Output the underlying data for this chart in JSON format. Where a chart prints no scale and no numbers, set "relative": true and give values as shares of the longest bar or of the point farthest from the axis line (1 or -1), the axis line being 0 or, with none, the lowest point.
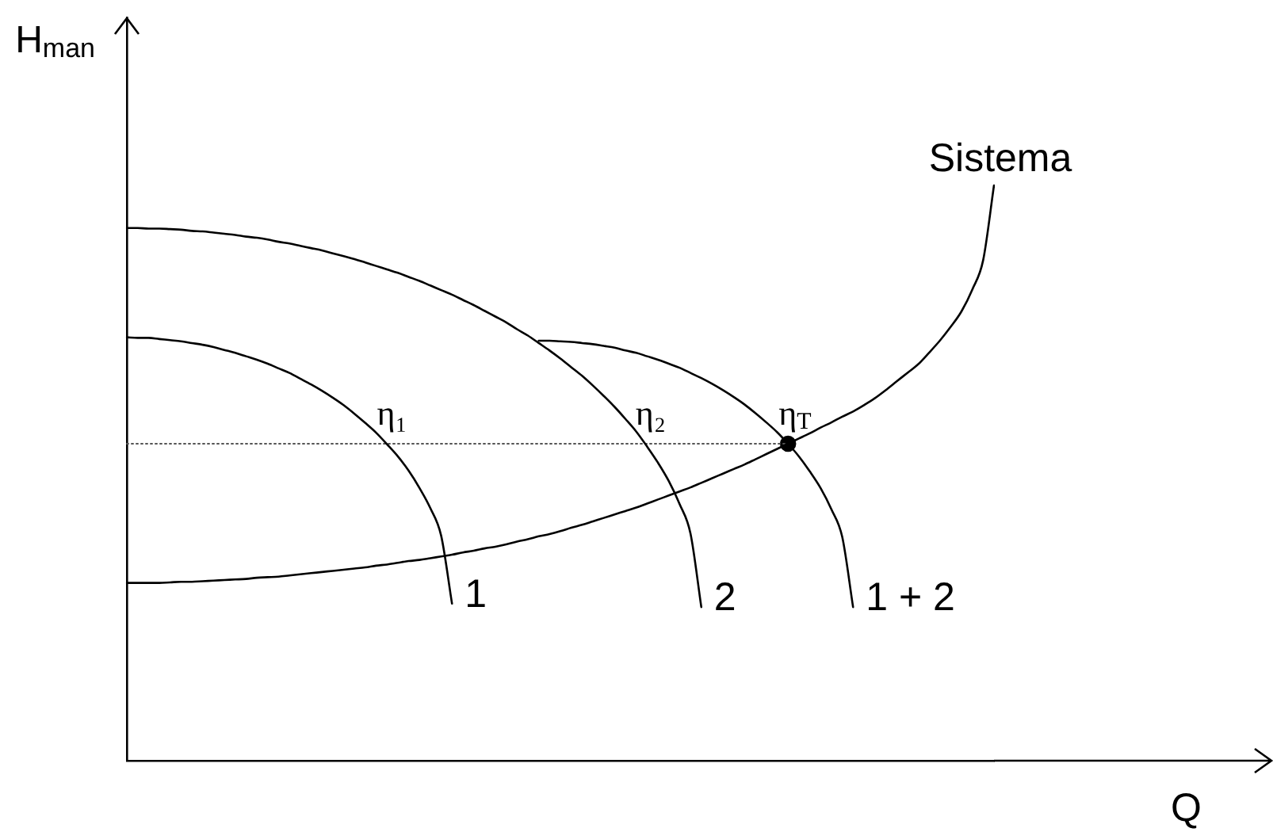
{
  "chart_data": {
    "type": "line",
    "relative": true,
    "marker": "none",
    "line_style": "solid",
    "xlabel": "Q",
    "ylabel": "H$_{man}$",
    "categories": [
      null,
      null,
      null,
      null,
      null,
      null,
      null,
      null,
      null,
      null,
      null,
      null,
      null,
      null,
      null,
      null,
      null,
      null,
      null,
      null,
      null,
      null,
      null,
      null,
      null,
      null,
      null,
      null,
      null,
      null,
      null,
      null,
      null,
      null,
      null,
      null,
      null,
      null,
      null,
      null,
      null,
      null,
      null,
      null,
      null,
      null,
      null,
      null,
      null,
      null,
      null,
      null,
      null,
      null,
      null,
      null,
      null,
      null,
      null,
      null,
      null,
      null,
      null,
      null,
      null,
      null,
      null,
      null,
      null,
      null,
      null,
      null,
      null,
      null,
      null,
      null,
      null,
      null,
      null,
      null,
      null
    ],
    "series": [
      {
        "name": "1",
        "color": "#000000",
        "values": [
          0.736,
          0.735,
          0.735,
          0.733,
          0.731,
          0.729,
          0.726,
          0.723,
          0.719,
          0.714,
          0.709,
          0.703,
          0.697,
          0.69,
          0.682,
          0.674,
          0.664,
          0.654,
          0.643,
          0.631,
          0.618,
          0.603,
          0.587,
          0.57,
          0.55,
          0.529,
          0.504,
          0.474,
          0.439,
          0.391,
          0.273,
          null,
          null,
          null,
          null,
          null,
          null,
          null,
          null,
          null,
          null,
          null,
          null,
          null,
          null,
          null,
          null,
          null,
          null,
          null,
          null,
          null,
          null,
          null,
          null,
          null,
          null,
          null,
          null,
          null,
          null,
          null,
          null,
          null,
          null,
          null,
          null,
          null,
          null,
          null,
          null,
          null,
          null,
          null,
          null,
          null,
          null,
          null,
          null,
          null,
          null
        ]
      },
      {
        "name": "2",
        "color": "#000000",
        "values": [
          0.926,
          0.926,
          0.925,
          0.925,
          0.924,
          0.923,
          0.921,
          0.92,
          0.918,
          0.916,
          0.914,
          0.911,
          0.909,
          0.906,
          0.902,
          0.899,
          0.895,
          0.891,
          0.887,
          0.882,
          0.877,
          0.872,
          0.866,
          0.86,
          0.854,
          0.848,
          0.841,
          0.834,
          0.826,
          0.818,
          0.81,
          0.801,
          0.792,
          0.782,
          0.772,
          0.762,
          0.75,
          0.739,
          0.726,
          0.713,
          0.699,
          0.684,
          0.669,
          0.652,
          0.634,
          0.615,
          0.594,
          0.572,
          0.546,
          0.518,
          0.486,
          0.446,
          0.395,
          0.267,
          null,
          null,
          null,
          null,
          null,
          null,
          null,
          null,
          null,
          null,
          null,
          null,
          null,
          null,
          null,
          null,
          null,
          null,
          null,
          null,
          null,
          null,
          null,
          null,
          null,
          null,
          null
        ]
      },
      {
        "name": "1 + 2",
        "color": "#000000",
        "values": [
          null,
          null,
          null,
          null,
          null,
          null,
          null,
          null,
          null,
          null,
          null,
          null,
          null,
          null,
          null,
          null,
          null,
          null,
          null,
          null,
          null,
          null,
          null,
          null,
          null,
          null,
          null,
          null,
          null,
          null,
          null,
          null,
          null,
          null,
          null,
          null,
          null,
          null,
          0.73,
          0.73,
          0.729,
          0.728,
          0.726,
          0.724,
          0.721,
          0.718,
          0.713,
          0.709,
          0.703,
          0.697,
          0.69,
          0.683,
          0.674,
          0.665,
          0.655,
          0.644,
          0.632,
          0.619,
          0.604,
          0.588,
          0.571,
          0.551,
          0.529,
          0.503,
          0.474,
          0.437,
          0.389,
          0.267,
          null,
          null,
          null,
          null,
          null,
          null,
          null,
          null,
          null,
          null,
          null,
          null,
          null
        ]
      },
      {
        "name": "Sistema",
        "color": "#000000",
        "values": [
          0.309,
          0.309,
          0.309,
          0.309,
          0.31,
          0.311,
          0.311,
          0.312,
          0.313,
          0.314,
          0.315,
          0.316,
          0.318,
          0.319,
          0.32,
          0.322,
          0.324,
          0.326,
          0.328,
          0.33,
          0.332,
          0.334,
          0.336,
          0.339,
          0.341,
          0.344,
          0.347,
          0.349,
          0.352,
          0.355,
          0.358,
          0.362,
          0.365,
          0.369,
          0.372,
          0.376,
          0.381,
          0.385,
          0.39,
          0.394,
          0.399,
          0.405,
          0.41,
          0.416,
          0.422,
          0.428,
          0.434,
          0.44,
          0.447,
          0.454,
          0.461,
          0.468,
          0.475,
          0.483,
          0.491,
          0.499,
          0.507,
          0.515,
          0.524,
          0.533,
          0.542,
          0.551,
          0.56,
          0.569,
          0.579,
          0.588,
          0.598,
          0.607,
          0.618,
          0.63,
          0.644,
          0.659,
          0.674,
          0.689,
          0.709,
          0.73,
          0.754,
          0.781,
          0.819,
          0.87,
          1
        ]
      },
      {
        "color": "#555555",
        "line_style": "dotted",
        "values": [
          0.551,
          0.551,
          0.551,
          0.551,
          0.551,
          0.551,
          0.551,
          0.551,
          0.551,
          0.551,
          0.551,
          0.551,
          0.551,
          0.551,
          0.551,
          0.551,
          0.551,
          0.551,
          0.551,
          0.551,
          0.551,
          0.551,
          0.551,
          0.551,
          0.551,
          0.551,
          0.551,
          0.551,
          0.551,
          0.551,
          0.551,
          0.551,
          0.551,
          0.551,
          0.551,
          0.551,
          0.551,
          0.551,
          0.551,
          0.551,
          0.551,
          0.551,
          0.551,
          0.551,
          0.551,
          0.551,
          0.551,
          0.551,
          0.551,
          0.551,
          0.551,
          0.551,
          0.551,
          0.551,
          0.551,
          0.551,
          0.551,
          0.551,
          0.551,
          0.551,
          0.551,
          0.551,
          null,
          null,
          null,
          null,
          null,
          null,
          null,
          null,
          null,
          null,
          null,
          null,
          null,
          null,
          null,
          null,
          null,
          null,
          null
        ]
      },
      {
        "marker": "circle",
        "color": "#000000",
        "values": [
          null,
          null,
          null,
          null,
          null,
          null,
          null,
          null,
          null,
          null,
          null,
          null,
          null,
          null,
          null,
          null,
          null,
          null,
          null,
          null,
          null,
          null,
          null,
          null,
          null,
          null,
          null,
          null,
          null,
          null,
          null,
          null,
          null,
          null,
          null,
          null,
          null,
          null,
          null,
          null,
          null,
          null,
          null,
          null,
          null,
          null,
          null,
          null,
          null,
          null,
          null,
          null,
          null,
          null,
          null,
          null,
          null,
          null,
          null,
          null,
          null,
          0.551,
          null,
          null,
          null,
          null,
          null,
          null,
          null,
          null,
          null,
          null,
          null,
          null,
          null,
          null,
          null,
          null,
          null,
          null,
          null
        ]
      }
    ],
    "annotations": [
      "η₁",
      "η₂",
      "η$_{T}$"
    ]
  }
}
